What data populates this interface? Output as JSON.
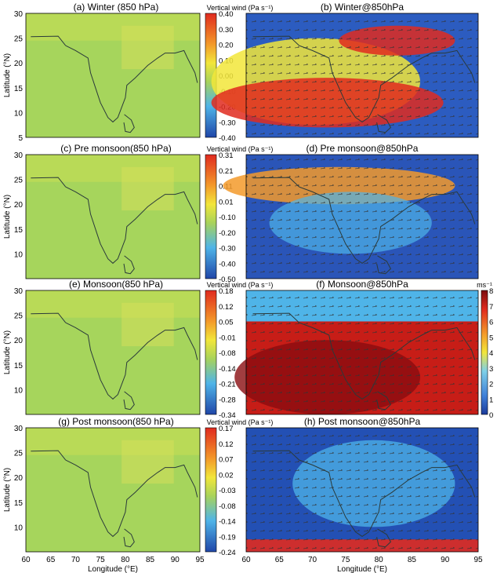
{
  "chart_data": [
    {
      "type": "heatmap",
      "title": "(a) Winter (850 hPa)",
      "colorbar_label": "Vertical wind (Pa s⁻¹)",
      "colorbar_ticks": [
        "0.40",
        "0.30",
        "0.20",
        "0.10",
        "0.00",
        "-0.10",
        "-0.20",
        "-0.30",
        "-0.40"
      ],
      "ylabel": "Latitude (°N)",
      "yticks": [
        "30",
        "25",
        "20",
        "15",
        "10",
        "5"
      ],
      "xlim": [
        60,
        95
      ],
      "ylim": [
        5,
        30
      ]
    },
    {
      "type": "heatmap",
      "title": "(b) Winter@850hPa",
      "xlim": [
        60,
        95
      ],
      "ylim": [
        5,
        30
      ]
    },
    {
      "type": "heatmap",
      "title": "(c) Pre monsoon(850 hPa)",
      "colorbar_label": "Vertical wind (Pa s⁻¹)",
      "colorbar_ticks": [
        "0.31",
        "0.21",
        "0.11",
        "0.01",
        "-0.10",
        "-0.20",
        "-0.30",
        "-0.40",
        "-0.50"
      ],
      "ylabel": "Latitude (°N)",
      "yticks": [
        "30",
        "25",
        "20",
        "15",
        "10"
      ],
      "xlim": [
        60,
        95
      ],
      "ylim": [
        5,
        30
      ]
    },
    {
      "type": "heatmap",
      "title": "(d) Pre monsoon@850hPa",
      "xlim": [
        60,
        95
      ],
      "ylim": [
        5,
        30
      ]
    },
    {
      "type": "heatmap",
      "title": "(e) Monsoon(850 hPa)",
      "colorbar_label": "Vertical wind (Pa s⁻¹)",
      "colorbar_ticks": [
        "0.18",
        "0.12",
        "0.05",
        "-0.01",
        "-0.08",
        "-0.14",
        "-0.21",
        "-0.28",
        "-0.34"
      ],
      "ylabel": "Latitude (°N)",
      "yticks": [
        "30",
        "25",
        "20",
        "15",
        "10"
      ],
      "xlim": [
        60,
        95
      ],
      "ylim": [
        5,
        30
      ]
    },
    {
      "type": "heatmap",
      "title": "(f) Monsoon@850hPa",
      "colorbar_label": "ms⁻¹",
      "colorbar_ticks": [
        "8",
        "7",
        "6",
        "5",
        "4",
        "3",
        "2",
        "1",
        "0"
      ],
      "xlim": [
        60,
        95
      ],
      "ylim": [
        5,
        30
      ]
    },
    {
      "type": "heatmap",
      "title": "(g) Post monsoon(850 hPa)",
      "colorbar_label": "Vertical wind (Pa s⁻¹)",
      "colorbar_ticks": [
        "0.17",
        "0.12",
        "0.07",
        "0.02",
        "-0.03",
        "-0.08",
        "-0.14",
        "-0.19",
        "-0.24"
      ],
      "ylabel": "Latitude (°N)",
      "yticks": [
        "30",
        "25",
        "20",
        "15",
        "10"
      ],
      "xlabel": "Longitude (°E)",
      "xticks": [
        "60",
        "65",
        "70",
        "75",
        "80",
        "85",
        "90",
        "95"
      ],
      "xlim": [
        60,
        95
      ],
      "ylim": [
        5,
        30
      ]
    },
    {
      "type": "heatmap",
      "title": "(h) Post monsoon@850hPa",
      "xlabel": "Longitude (°E)",
      "xticks": [
        "60",
        "65",
        "70",
        "75",
        "80",
        "85",
        "90",
        "95"
      ],
      "xlim": [
        60,
        95
      ],
      "ylim": [
        5,
        30
      ]
    }
  ],
  "colors": {
    "ocean_blue": "#2046a8",
    "sky": "#4fb4e8",
    "green_yellow": "#a8d35a",
    "yellow": "#f2e63a",
    "orange": "#f39a2a",
    "red": "#e02a1f",
    "dark_red": "#8a0d10",
    "map_bg": "#9ccf5e",
    "coast": "#2a3a3a"
  }
}
